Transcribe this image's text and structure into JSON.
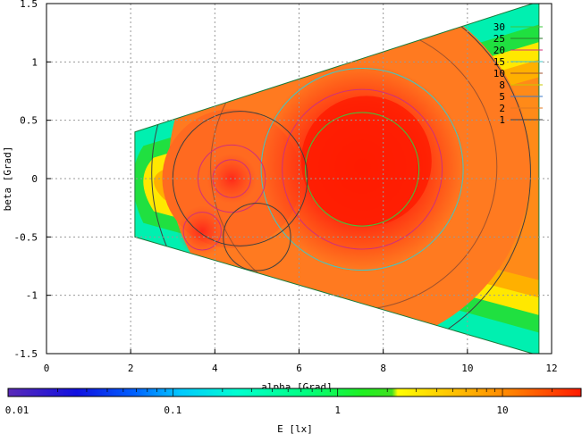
{
  "chart_data": {
    "type": "heatmap",
    "title": "",
    "xlabel": "alpha [Grad]",
    "ylabel": "beta [Grad]",
    "xlim": [
      0,
      12
    ],
    "ylim": [
      1.5,
      -1.5
    ],
    "x_ticks": [
      "0",
      "2",
      "4",
      "6",
      "8",
      "10",
      "12"
    ],
    "y_ticks": [
      "-1.5",
      "-1",
      "-0.5",
      "0",
      "0.5",
      "1",
      "1.5"
    ],
    "grid": true,
    "legend": {
      "placement": "top-right",
      "entries": [
        {
          "label": "30",
          "color": "#3cc83c"
        },
        {
          "label": "25",
          "color": "#2a7a2a"
        },
        {
          "label": "20",
          "color": "#d0307a"
        },
        {
          "label": "15",
          "color": "#3cc8c8"
        },
        {
          "label": "10",
          "color": "#a0522d"
        },
        {
          "label": "8",
          "color": "#c8c800"
        },
        {
          "label": "5",
          "color": "#3c78c8"
        },
        {
          "label": "2",
          "color": "#e07820"
        },
        {
          "label": "1",
          "color": "#404040"
        }
      ]
    },
    "colorbar": {
      "label": "E [lx]",
      "scale": "log",
      "range": [
        0.01,
        30
      ],
      "tick_labels": [
        "0.01",
        "0.1",
        "1",
        "10"
      ]
    },
    "illuminated_region": {
      "alpha_min": 2.1,
      "alpha_max": 11.7,
      "beta_limits_at_alpha_min": [
        -0.5,
        0.4
      ],
      "beta_limits_at_alpha_max": [
        -1.5,
        1.5
      ]
    },
    "peak": {
      "alpha": 7.5,
      "beta": 0.1,
      "E": 30
    },
    "secondary_peaks": [
      {
        "alpha": 3.7,
        "beta": -0.45,
        "E": 25
      },
      {
        "alpha": 4.4,
        "beta": 0.0,
        "E": 20
      }
    ]
  }
}
